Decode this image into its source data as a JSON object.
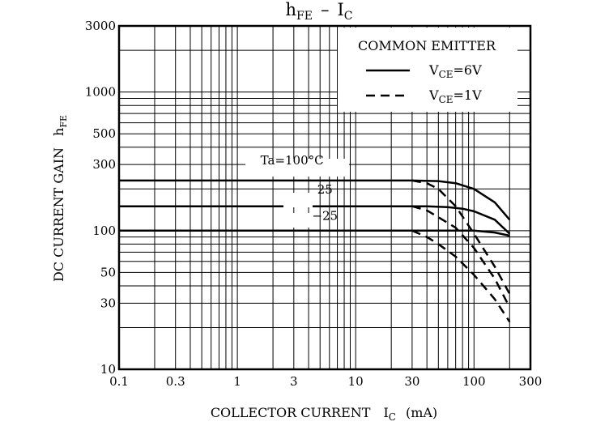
{
  "chart_data": {
    "type": "line",
    "title": {
      "main": "h",
      "main_sub": "FE",
      "sep": "–",
      "rhs": "I",
      "rhs_sub": "C"
    },
    "xlabel": {
      "text": "COLLECTOR CURRENT",
      "sym": "I",
      "sym_sub": "C",
      "unit": "(mA)"
    },
    "ylabel": {
      "text": "DC CURRENT GAIN",
      "sym": "h",
      "sym_sub": "FE"
    },
    "x_scale": "log",
    "y_scale": "log",
    "xlim": [
      0.1,
      300
    ],
    "ylim": [
      10,
      3000
    ],
    "x_ticks": [
      {
        "value": 0.1,
        "label": "0.1"
      },
      {
        "value": 0.3,
        "label": "0.3"
      },
      {
        "value": 1,
        "label": "1"
      },
      {
        "value": 3,
        "label": "3"
      },
      {
        "value": 10,
        "label": "10"
      },
      {
        "value": 30,
        "label": "30"
      },
      {
        "value": 100,
        "label": "100"
      },
      {
        "value": 300,
        "label": "300"
      }
    ],
    "y_ticks": [
      {
        "value": 10,
        "label": "10"
      },
      {
        "value": 30,
        "label": "30"
      },
      {
        "value": 50,
        "label": "50"
      },
      {
        "value": 100,
        "label": "100"
      },
      {
        "value": 300,
        "label": "300"
      },
      {
        "value": 500,
        "label": "500"
      },
      {
        "value": 1000,
        "label": "1000"
      },
      {
        "value": 3000,
        "label": "3000"
      }
    ],
    "grid": true,
    "legend": {
      "title": "COMMON EMITTER",
      "placement": "top-right",
      "entries": [
        {
          "style": "solid",
          "sym": "V",
          "sub": "CE",
          "rest": "=6V"
        },
        {
          "style": "dashed",
          "sym": "V",
          "sub": "CE",
          "rest": "=1V"
        }
      ]
    },
    "annotations": [
      {
        "text": "Ta=100°C",
        "x": 2.9,
        "y": 300
      },
      {
        "text": "25",
        "x": 5.5,
        "y": 185
      },
      {
        "text": "−25",
        "x": 5.5,
        "y": 120
      }
    ],
    "series": [
      {
        "temperature": "100",
        "condition": "6V",
        "style": "solid",
        "x": [
          0.1,
          30,
          50,
          70,
          100,
          150,
          200
        ],
        "y": [
          230,
          230,
          228,
          220,
          200,
          160,
          120
        ]
      },
      {
        "temperature": "25",
        "condition": "6V",
        "style": "solid",
        "x": [
          0.1,
          40,
          60,
          80,
          100,
          150,
          200
        ],
        "y": [
          150,
          150,
          148,
          144,
          138,
          120,
          95
        ]
      },
      {
        "temperature": "-25",
        "condition": "6V",
        "style": "solid",
        "x": [
          0.1,
          40,
          60,
          80,
          100,
          150,
          200
        ],
        "y": [
          100,
          100,
          100,
          100,
          100,
          97,
          92
        ]
      },
      {
        "temperature": "100",
        "condition": "1V",
        "style": "dashed",
        "x": [
          30,
          40,
          50,
          70,
          100,
          150,
          200
        ],
        "y": [
          230,
          220,
          200,
          150,
          95,
          55,
          35
        ]
      },
      {
        "temperature": "25",
        "condition": "1V",
        "style": "dashed",
        "x": [
          30,
          40,
          50,
          70,
          100,
          150,
          200
        ],
        "y": [
          150,
          140,
          125,
          105,
          75,
          45,
          28
        ]
      },
      {
        "temperature": "-25",
        "condition": "1V",
        "style": "dashed",
        "x": [
          30,
          40,
          50,
          70,
          100,
          150,
          200
        ],
        "y": [
          100,
          90,
          80,
          65,
          48,
          32,
          22
        ]
      }
    ]
  }
}
